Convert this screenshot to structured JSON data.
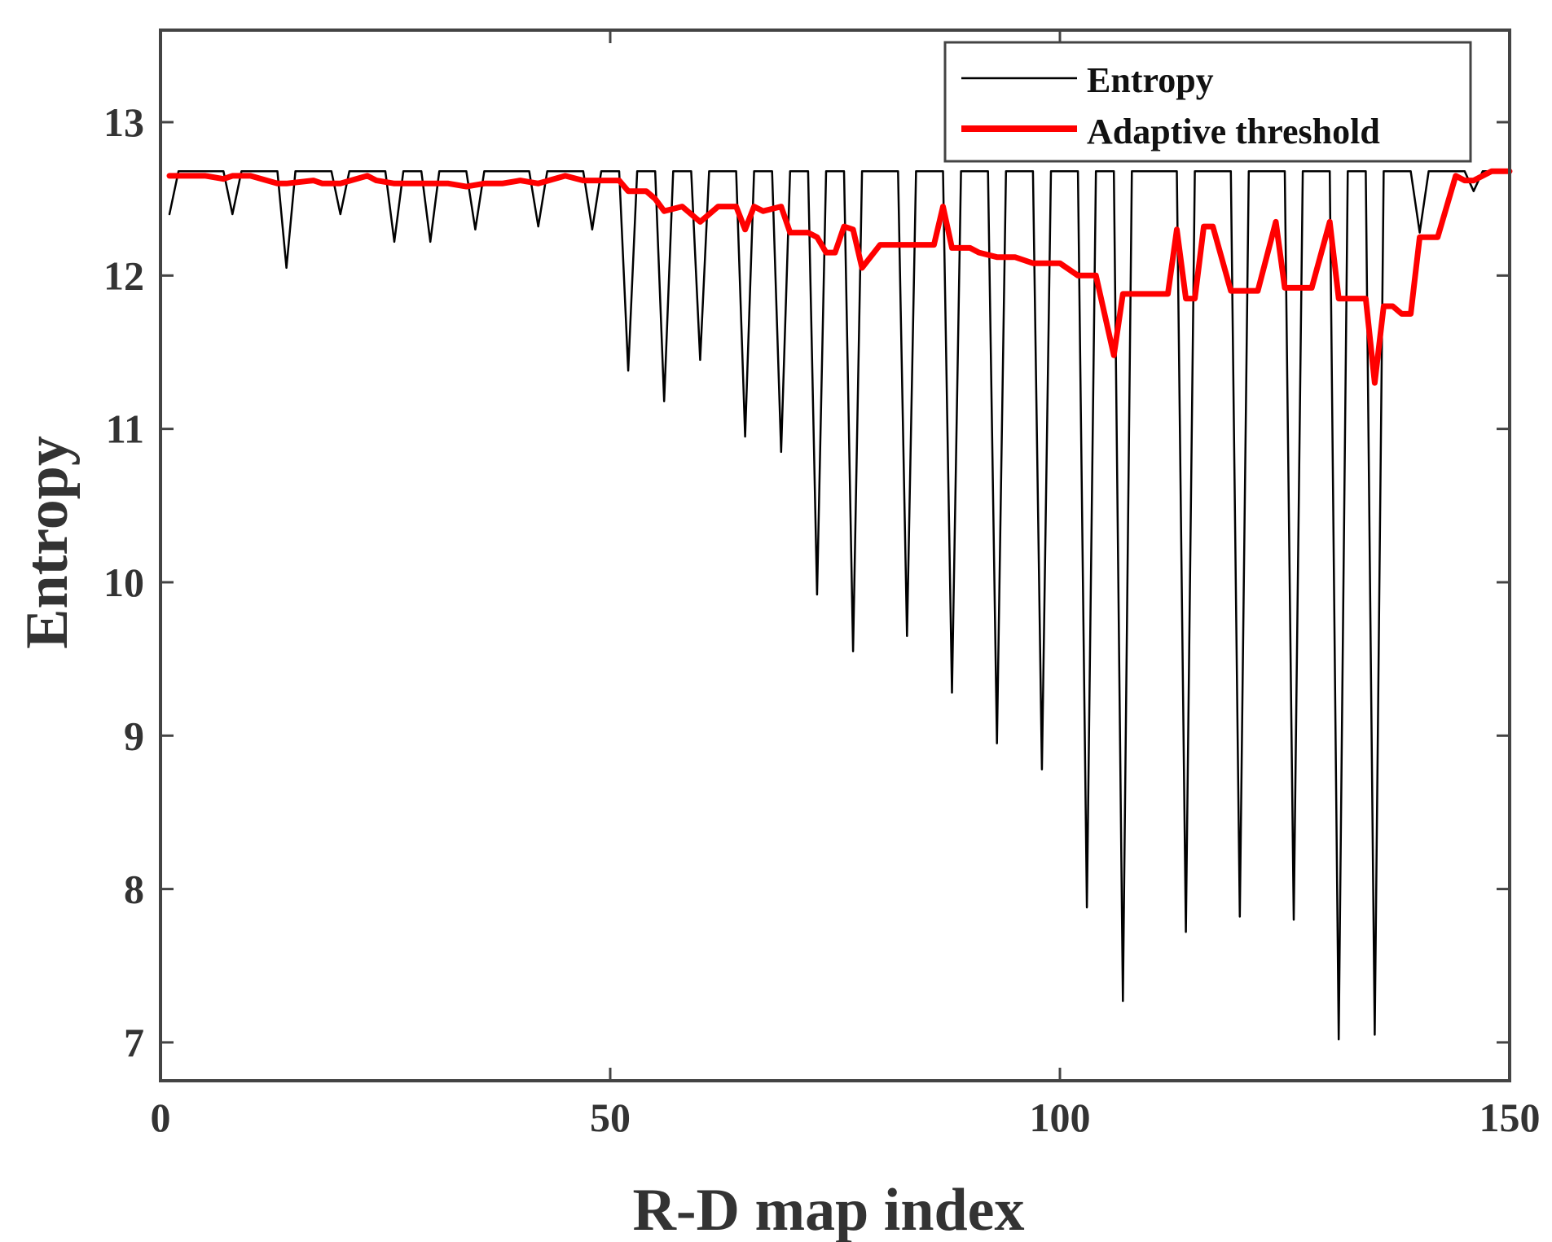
{
  "chart_data": {
    "type": "line",
    "xlabel": "R-D map index",
    "ylabel": "Entropy",
    "xlim": [
      0,
      150
    ],
    "ylim": [
      6.75,
      13.6
    ],
    "xticks": [
      0,
      50,
      100,
      150
    ],
    "yticks": [
      7,
      8,
      9,
      10,
      11,
      12,
      13
    ],
    "legend_position": "top-right",
    "colors": {
      "entropy": "#000000",
      "threshold": "#ff0000",
      "axes": "#444444"
    },
    "series": [
      {
        "name": "Entropy",
        "color": "#000000",
        "x": [
          1,
          2,
          7,
          8,
          9,
          13,
          14,
          15,
          19,
          20,
          21,
          25,
          26,
          27,
          29,
          30,
          31,
          34,
          35,
          36,
          41,
          42,
          43,
          47,
          48,
          49,
          51,
          52,
          53,
          55,
          56,
          57,
          59,
          60,
          61,
          64,
          65,
          66,
          68,
          69,
          70,
          72,
          73,
          74,
          76,
          77,
          78,
          82,
          83,
          84,
          87,
          88,
          89,
          92,
          93,
          94,
          97,
          98,
          99,
          102,
          103,
          104,
          106,
          107,
          108,
          113,
          114,
          115,
          119,
          120,
          121,
          125,
          126,
          127,
          130,
          131,
          132,
          134,
          135,
          136,
          139,
          140,
          141,
          145,
          146,
          147,
          150
        ],
        "y": [
          12.4,
          12.68,
          12.68,
          12.4,
          12.68,
          12.68,
          12.05,
          12.68,
          12.68,
          12.4,
          12.68,
          12.68,
          12.22,
          12.68,
          12.68,
          12.22,
          12.68,
          12.68,
          12.3,
          12.68,
          12.68,
          12.32,
          12.68,
          12.68,
          12.3,
          12.68,
          12.68,
          11.38,
          12.68,
          12.68,
          11.18,
          12.68,
          12.68,
          11.45,
          12.68,
          12.68,
          10.95,
          12.68,
          12.68,
          10.85,
          12.68,
          12.68,
          9.92,
          12.68,
          12.68,
          9.55,
          12.68,
          12.68,
          9.65,
          12.68,
          12.68,
          9.28,
          12.68,
          12.68,
          8.95,
          12.68,
          12.68,
          8.78,
          12.68,
          12.68,
          7.88,
          12.68,
          12.68,
          7.27,
          12.68,
          12.68,
          7.72,
          12.68,
          12.68,
          7.82,
          12.68,
          12.68,
          7.8,
          12.68,
          12.68,
          7.02,
          12.68,
          12.68,
          7.05,
          12.68,
          12.68,
          12.28,
          12.68,
          12.68,
          12.55,
          12.68,
          12.68
        ]
      },
      {
        "name": "Adaptive threshold",
        "color": "#ff0000",
        "x": [
          1,
          5,
          7,
          8,
          10,
          13,
          14,
          17,
          18,
          20,
          23,
          24,
          26,
          28,
          30,
          32,
          34,
          36,
          38,
          40,
          42,
          45,
          47,
          51,
          52,
          54,
          55,
          56,
          58,
          59,
          60,
          62,
          64,
          65,
          66,
          67,
          69,
          70,
          72,
          73,
          74,
          75,
          76,
          77,
          78,
          80,
          83,
          86,
          87,
          88,
          90,
          91,
          93,
          95,
          97,
          98,
          100,
          102,
          103,
          104,
          106,
          107,
          108,
          110,
          112,
          113,
          114,
          115,
          116,
          117,
          119,
          120,
          121,
          122,
          124,
          125,
          126,
          127,
          128,
          130,
          131,
          132,
          134,
          135,
          136,
          137,
          138,
          139,
          140,
          141,
          142,
          144,
          145,
          146,
          147,
          148,
          149,
          150
        ],
        "y": [
          12.65,
          12.65,
          12.63,
          12.65,
          12.65,
          12.6,
          12.6,
          12.62,
          12.6,
          12.6,
          12.65,
          12.62,
          12.6,
          12.6,
          12.6,
          12.6,
          12.58,
          12.6,
          12.6,
          12.62,
          12.6,
          12.65,
          12.62,
          12.62,
          12.55,
          12.55,
          12.5,
          12.42,
          12.45,
          12.4,
          12.35,
          12.45,
          12.45,
          12.3,
          12.45,
          12.42,
          12.45,
          12.28,
          12.28,
          12.25,
          12.15,
          12.15,
          12.32,
          12.3,
          12.05,
          12.2,
          12.2,
          12.2,
          12.45,
          12.18,
          12.18,
          12.15,
          12.12,
          12.12,
          12.08,
          12.08,
          12.08,
          12.0,
          12.0,
          12.0,
          11.48,
          11.88,
          11.88,
          11.88,
          11.88,
          12.3,
          11.85,
          11.85,
          12.32,
          12.32,
          11.9,
          11.9,
          11.9,
          11.9,
          12.35,
          11.92,
          11.92,
          11.92,
          11.92,
          12.35,
          11.85,
          11.85,
          11.85,
          11.3,
          11.8,
          11.8,
          11.75,
          11.75,
          12.25,
          12.25,
          12.25,
          12.65,
          12.62,
          12.62,
          12.65,
          12.68,
          12.68,
          12.68
        ]
      }
    ]
  }
}
